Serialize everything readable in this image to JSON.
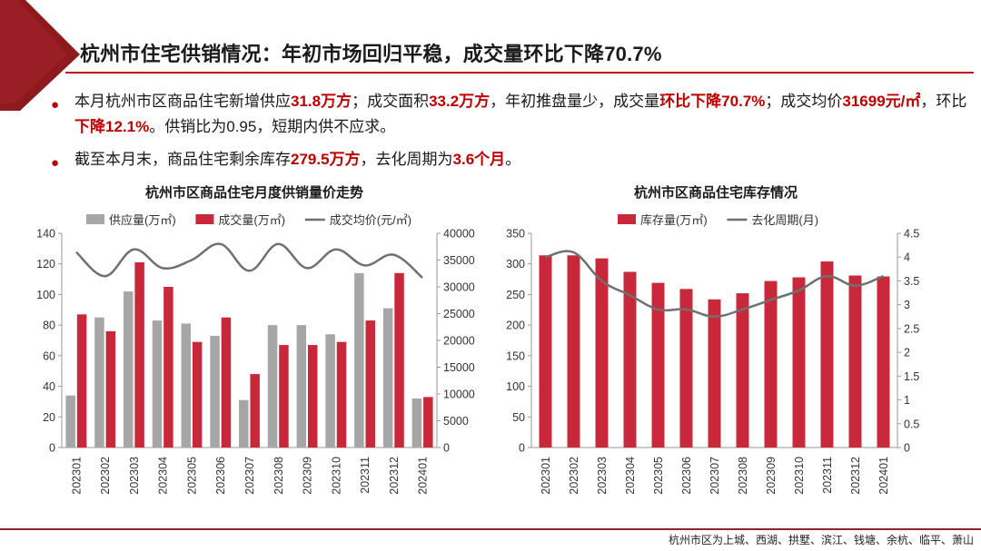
{
  "header": {
    "title": "杭州市住宅供销情况：年初市场回归平稳，成交量环比下降70.7%"
  },
  "bullets": {
    "b1": {
      "p1": "本月杭州市区商品住宅新增供应",
      "h1": "31.8万方",
      "p2": "；成交面积",
      "h2": "33.2万方",
      "p3": "，年初推盘量少，成交量",
      "h3": "环比下降70.7%",
      "p4": "；成交均价",
      "h4": "31699元/㎡",
      "p5": "，环比",
      "h5": "下降12.1%",
      "p6": "。供销比为0.95，短期内供不应求。"
    },
    "b2": {
      "p1": "截至本月末，商品住宅剩余库存",
      "h1": "279.5万方",
      "p2": "，去化周期为",
      "h2": "3.6个月",
      "p3": "。"
    }
  },
  "colors": {
    "accent": "#c00000",
    "supply": "#a6a6a6",
    "deal": "#c9283a",
    "line": "#707070"
  },
  "chart_data": [
    {
      "type": "bar",
      "title": "杭州市区商品住宅月度供销量价走势",
      "categories": [
        "202301",
        "202302",
        "202303",
        "202304",
        "202305",
        "202306",
        "202307",
        "202308",
        "202309",
        "202310",
        "202311",
        "202312",
        "202401"
      ],
      "series": [
        {
          "name": "供应量(万㎡)",
          "kind": "bar",
          "axis": "left",
          "values": [
            34,
            85,
            102,
            83,
            81,
            73,
            31,
            80,
            80,
            74,
            114,
            91,
            32
          ]
        },
        {
          "name": "成交量(万㎡)",
          "kind": "bar",
          "axis": "left",
          "values": [
            87,
            76,
            121,
            105,
            69,
            85,
            48,
            67,
            67,
            69,
            83,
            114,
            33
          ]
        },
        {
          "name": "成交均价(元/㎡)",
          "kind": "line",
          "axis": "right",
          "values": [
            36500,
            32000,
            37000,
            33500,
            35000,
            38000,
            33000,
            38000,
            33500,
            37000,
            34000,
            36000,
            31700
          ]
        }
      ],
      "yleft": {
        "min": 0,
        "max": 140,
        "step": 20
      },
      "yright": {
        "min": 0,
        "max": 40000,
        "step": 5000
      },
      "legend": "top"
    },
    {
      "type": "bar",
      "title": "杭州市区商品住宅库存情况",
      "categories": [
        "202301",
        "202302",
        "202303",
        "202304",
        "202305",
        "202306",
        "202307",
        "202308",
        "202309",
        "202310",
        "202311",
        "202312",
        "202401"
      ],
      "series": [
        {
          "name": "库存量(万㎡)",
          "kind": "bar",
          "axis": "left",
          "values": [
            314,
            314,
            309,
            287,
            269,
            259,
            242,
            252,
            272,
            278,
            304,
            281,
            279.5
          ]
        },
        {
          "name": "去化周期(月)",
          "kind": "line",
          "axis": "right",
          "values": [
            4.0,
            4.1,
            3.5,
            3.2,
            2.9,
            2.9,
            2.75,
            2.9,
            3.1,
            3.3,
            3.6,
            3.4,
            3.6
          ]
        }
      ],
      "yleft": {
        "min": 0,
        "max": 350,
        "step": 50
      },
      "yright": {
        "min": 0,
        "max": 4.5,
        "step": 0.5
      },
      "legend": "top"
    }
  ],
  "footer": {
    "note": "杭州市区为上城、西湖、拱墅、滨江、钱塘、余杭、临平、萧山"
  }
}
